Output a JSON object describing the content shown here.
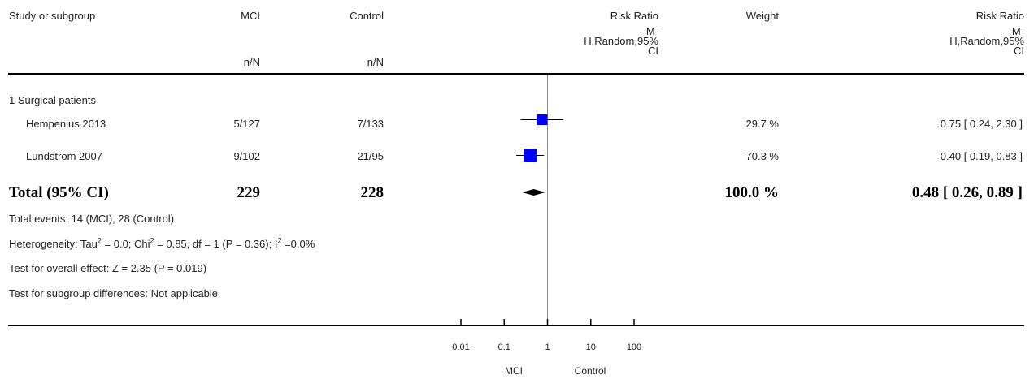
{
  "header": {
    "study": "Study or subgroup",
    "group1": "MCI",
    "group2": "Control",
    "group1_sub": "n/N",
    "group2_sub": "n/N",
    "rr_title": "Risk Ratio",
    "rr_method": [
      "M-",
      "H,Random,95%",
      "CI"
    ],
    "weight": "Weight",
    "rr2_title": "Risk Ratio",
    "rr2_method": [
      "M-",
      "H,Random,95%",
      "CI"
    ]
  },
  "subgroup_title": "1 Surgical patients",
  "total": {
    "label": "Total (95% CI)",
    "n1": "229",
    "n2": "228",
    "weight": "100.0 %",
    "ci_text": "0.48 [ 0.26, 0.89 ]"
  },
  "footnotes": {
    "events": "Total events: 14 (MCI), 28 (Control)",
    "heterogeneity_a": "Heterogeneity: Tau",
    "heterogeneity_b": " = 0.0; Chi",
    "heterogeneity_c": " = 0.85, df = 1 (P = 0.36); I",
    "heterogeneity_d": " =0.0%",
    "sup": "2",
    "overall": "Test for overall effect: Z = 2.35 (P = 0.019)",
    "subgroup": "Test for subgroup differences: Not applicable"
  },
  "axis": {
    "favours_left": "MCI",
    "favours_right": "Control"
  },
  "colors": {
    "marker": "#0000ff",
    "line": "#000000",
    "null_line": "#888888"
  },
  "chart_data": {
    "type": "forest",
    "scale": "log",
    "xlim": [
      0.01,
      100
    ],
    "ticks": [
      0.01,
      0.1,
      1,
      10,
      100
    ],
    "tick_labels": [
      "0.01",
      "0.1",
      "1",
      "10",
      "100"
    ],
    "null_value": 1,
    "studies": [
      {
        "name": "Hempenius 2013",
        "events1": "5/127",
        "events2": "7/133",
        "weight_pct": 29.7,
        "weight_text": "29.7 %",
        "rr": 0.75,
        "lower": 0.24,
        "upper": 2.3,
        "ci_text": "0.75 [ 0.24, 2.30 ]"
      },
      {
        "name": "Lundstrom 2007",
        "events1": "9/102",
        "events2": "21/95",
        "weight_pct": 70.3,
        "weight_text": "70.3 %",
        "rr": 0.4,
        "lower": 0.19,
        "upper": 0.83,
        "ci_text": "0.40 [ 0.19, 0.83 ]"
      }
    ],
    "pooled": {
      "rr": 0.48,
      "lower": 0.26,
      "upper": 0.89
    }
  }
}
